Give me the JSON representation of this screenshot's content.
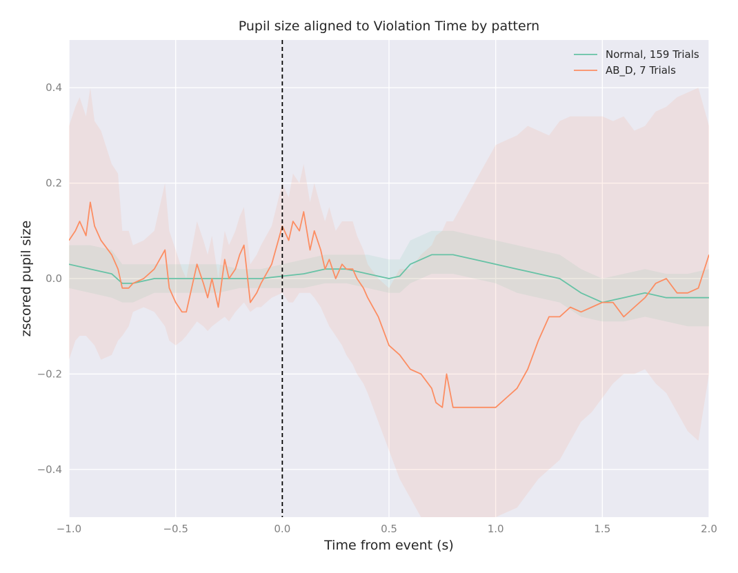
{
  "chart_data": {
    "type": "line",
    "title": "Pupil size aligned to Violation Time by pattern",
    "xlabel": "Time from event (s)",
    "ylabel": "zscored pupil size",
    "xlim": [
      -1.0,
      2.0
    ],
    "ylim": [
      -0.5,
      0.5
    ],
    "xticks": [
      -1.0,
      -0.5,
      0.0,
      0.5,
      1.0,
      1.5,
      2.0
    ],
    "xtick_labels": [
      "−1.0",
      "−0.5",
      "0.0",
      "0.5",
      "1.0",
      "1.5",
      "2.0"
    ],
    "yticks": [
      -0.4,
      -0.2,
      0.0,
      0.2,
      0.4
    ],
    "ytick_labels": [
      "−0.4",
      "−0.2",
      "0.0",
      "0.2",
      "0.4"
    ],
    "grid": true,
    "legend_position": "top-right",
    "vline": {
      "x": 0.0,
      "style": "dashed",
      "color": "#000000"
    },
    "series": [
      {
        "name": "Normal, 159 Trials",
        "color": "#66c2a5",
        "x": [
          -1.0,
          -0.9,
          -0.8,
          -0.75,
          -0.7,
          -0.6,
          -0.5,
          -0.4,
          -0.3,
          -0.2,
          -0.1,
          0.0,
          0.1,
          0.2,
          0.3,
          0.4,
          0.5,
          0.55,
          0.6,
          0.7,
          0.8,
          0.9,
          1.0,
          1.1,
          1.2,
          1.3,
          1.4,
          1.5,
          1.6,
          1.7,
          1.8,
          1.9,
          2.0
        ],
        "y": [
          0.03,
          0.02,
          0.01,
          -0.01,
          -0.01,
          0.0,
          0.0,
          0.0,
          0.0,
          0.0,
          0.0,
          0.005,
          0.01,
          0.02,
          0.02,
          0.01,
          0.0,
          0.005,
          0.03,
          0.05,
          0.05,
          0.04,
          0.03,
          0.02,
          0.01,
          0.0,
          -0.03,
          -0.05,
          -0.04,
          -0.03,
          -0.04,
          -0.04,
          -0.04
        ],
        "band_lower": [
          -0.02,
          -0.03,
          -0.04,
          -0.05,
          -0.05,
          -0.03,
          -0.03,
          -0.03,
          -0.03,
          -0.02,
          -0.02,
          -0.02,
          -0.02,
          -0.01,
          -0.01,
          -0.02,
          -0.03,
          -0.03,
          -0.01,
          0.01,
          0.01,
          0.0,
          -0.01,
          -0.03,
          -0.04,
          -0.05,
          -0.08,
          -0.09,
          -0.09,
          -0.08,
          -0.09,
          -0.1,
          -0.1
        ],
        "band_upper": [
          0.07,
          0.07,
          0.06,
          0.03,
          0.03,
          0.03,
          0.03,
          0.03,
          0.03,
          0.02,
          0.02,
          0.03,
          0.04,
          0.05,
          0.05,
          0.05,
          0.04,
          0.04,
          0.08,
          0.1,
          0.1,
          0.09,
          0.08,
          0.07,
          0.06,
          0.05,
          0.02,
          0.0,
          0.01,
          0.02,
          0.01,
          0.01,
          0.02
        ]
      },
      {
        "name": "AB_D, 7 Trials",
        "color": "#fc8d62",
        "x": [
          -1.0,
          -0.97,
          -0.95,
          -0.92,
          -0.9,
          -0.88,
          -0.85,
          -0.8,
          -0.77,
          -0.75,
          -0.72,
          -0.7,
          -0.65,
          -0.6,
          -0.55,
          -0.53,
          -0.5,
          -0.47,
          -0.45,
          -0.4,
          -0.37,
          -0.35,
          -0.33,
          -0.3,
          -0.27,
          -0.25,
          -0.22,
          -0.2,
          -0.18,
          -0.15,
          -0.12,
          -0.1,
          -0.05,
          0.0,
          0.03,
          0.05,
          0.08,
          0.1,
          0.13,
          0.15,
          0.18,
          0.2,
          0.22,
          0.25,
          0.28,
          0.3,
          0.33,
          0.35,
          0.38,
          0.4,
          0.45,
          0.5,
          0.55,
          0.6,
          0.65,
          0.7,
          0.72,
          0.75,
          0.77,
          0.8,
          0.85,
          0.9,
          0.95,
          1.0,
          1.05,
          1.1,
          1.15,
          1.2,
          1.25,
          1.3,
          1.35,
          1.4,
          1.45,
          1.5,
          1.55,
          1.6,
          1.65,
          1.7,
          1.75,
          1.8,
          1.85,
          1.9,
          1.95,
          2.0
        ],
        "y": [
          0.08,
          0.1,
          0.12,
          0.09,
          0.16,
          0.11,
          0.08,
          0.05,
          0.02,
          -0.02,
          -0.02,
          -0.01,
          0.0,
          0.02,
          0.06,
          -0.02,
          -0.05,
          -0.07,
          -0.07,
          0.03,
          -0.01,
          -0.04,
          0.0,
          -0.06,
          0.04,
          0.0,
          0.02,
          0.05,
          0.07,
          -0.05,
          -0.03,
          -0.01,
          0.03,
          0.11,
          0.08,
          0.12,
          0.1,
          0.14,
          0.06,
          0.1,
          0.06,
          0.02,
          0.04,
          0.0,
          0.03,
          0.02,
          0.02,
          0.0,
          -0.02,
          -0.04,
          -0.08,
          -0.14,
          -0.16,
          -0.19,
          -0.2,
          -0.23,
          -0.26,
          -0.27,
          -0.2,
          -0.27,
          -0.27,
          -0.27,
          -0.27,
          -0.27,
          -0.25,
          -0.23,
          -0.19,
          -0.13,
          -0.08,
          -0.08,
          -0.06,
          -0.07,
          -0.06,
          -0.05,
          -0.05,
          -0.08,
          -0.06,
          -0.04,
          -0.01,
          0.0,
          -0.03,
          -0.03,
          -0.02,
          0.05
        ],
        "band_lower": [
          -0.17,
          -0.13,
          -0.12,
          -0.12,
          -0.13,
          -0.14,
          -0.17,
          -0.16,
          -0.13,
          -0.12,
          -0.1,
          -0.07,
          -0.06,
          -0.07,
          -0.1,
          -0.13,
          -0.14,
          -0.13,
          -0.12,
          -0.09,
          -0.1,
          -0.11,
          -0.1,
          -0.09,
          -0.08,
          -0.09,
          -0.07,
          -0.06,
          -0.05,
          -0.07,
          -0.06,
          -0.06,
          -0.04,
          -0.03,
          -0.05,
          -0.05,
          -0.03,
          -0.03,
          -0.03,
          -0.04,
          -0.06,
          -0.08,
          -0.1,
          -0.12,
          -0.14,
          -0.16,
          -0.18,
          -0.2,
          -0.22,
          -0.24,
          -0.3,
          -0.36,
          -0.42,
          -0.46,
          -0.5,
          -0.5,
          -0.5,
          -0.5,
          -0.5,
          -0.5,
          -0.5,
          -0.5,
          -0.5,
          -0.5,
          -0.49,
          -0.48,
          -0.45,
          -0.42,
          -0.4,
          -0.38,
          -0.34,
          -0.3,
          -0.28,
          -0.25,
          -0.22,
          -0.2,
          -0.2,
          -0.19,
          -0.22,
          -0.24,
          -0.28,
          -0.32,
          -0.34,
          -0.2
        ],
        "band_upper": [
          0.32,
          0.36,
          0.38,
          0.34,
          0.4,
          0.33,
          0.31,
          0.24,
          0.22,
          0.1,
          0.1,
          0.07,
          0.08,
          0.1,
          0.2,
          0.1,
          0.06,
          0.02,
          0.0,
          0.12,
          0.08,
          0.05,
          0.09,
          0.0,
          0.1,
          0.07,
          0.1,
          0.13,
          0.15,
          0.03,
          0.05,
          0.07,
          0.11,
          0.2,
          0.17,
          0.22,
          0.2,
          0.24,
          0.16,
          0.2,
          0.15,
          0.12,
          0.15,
          0.1,
          0.12,
          0.12,
          0.12,
          0.09,
          0.06,
          0.03,
          0.0,
          -0.02,
          0.02,
          0.02,
          0.05,
          0.07,
          0.09,
          0.1,
          0.12,
          0.12,
          0.16,
          0.2,
          0.24,
          0.28,
          0.29,
          0.3,
          0.32,
          0.31,
          0.3,
          0.33,
          0.34,
          0.34,
          0.34,
          0.34,
          0.33,
          0.34,
          0.31,
          0.32,
          0.35,
          0.36,
          0.38,
          0.39,
          0.4,
          0.32
        ]
      }
    ]
  }
}
